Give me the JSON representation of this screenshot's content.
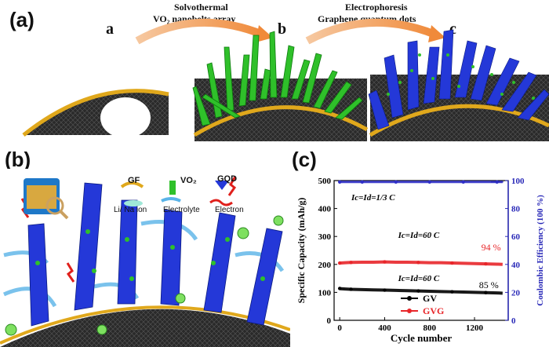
{
  "panels": {
    "a": "(a)",
    "b": "(b)",
    "c": "(c)"
  },
  "panel_a": {
    "steps": [
      "a",
      "b",
      "c"
    ],
    "arrow1": {
      "line1": "Solvothermal",
      "line2": "VO₂ nanobelts array"
    },
    "arrow2": {
      "line1": "Electrophoresis",
      "line2": "Graphene quantum dots"
    }
  },
  "panel_b": {
    "legend": [
      {
        "key": "GF",
        "label": "Li/ Na ion"
      },
      {
        "key": "VO₂",
        "label": "Electrolyte"
      },
      {
        "key": "GQD",
        "label": "Electron"
      }
    ]
  },
  "colors": {
    "gv": "#000000",
    "gvg": "#e8262a",
    "ce": "#3030c8",
    "axis_right": "#2a2ab8",
    "green": "#2fc02a",
    "blue": "#2438d8",
    "gold": "#e0a81c"
  },
  "chart_data": {
    "type": "scatter",
    "xlabel": "Cycle number",
    "ylabel": "Specific Capacity (mAh/g)",
    "y2label": "Coulombic Efficiency (100 %)",
    "xticks": [
      "0",
      "400",
      "800",
      "1200"
    ],
    "yticks": [
      "0",
      "100",
      "200",
      "300",
      "400",
      "500"
    ],
    "y2ticks": [
      "0",
      "20",
      "40",
      "60",
      "80",
      "100"
    ],
    "xlim": [
      -50,
      1500
    ],
    "ylim": [
      0,
      500
    ],
    "y2lim": [
      0,
      100
    ],
    "series": [
      {
        "name": "GV",
        "x": [
          0,
          10,
          50,
          100,
          200,
          300,
          400,
          500,
          600,
          700,
          800,
          900,
          1000,
          1100,
          1200,
          1300,
          1400,
          1450
        ],
        "values": [
          114,
          113,
          112,
          111,
          110,
          109,
          108,
          107,
          106,
          105,
          104,
          103,
          102,
          101,
          100,
          99,
          98,
          97
        ]
      },
      {
        "name": "GVG",
        "x": [
          0,
          10,
          50,
          100,
          200,
          300,
          400,
          500,
          600,
          700,
          800,
          900,
          1000,
          1100,
          1200,
          1300,
          1400,
          1450
        ],
        "values": [
          205,
          205,
          206,
          207,
          208,
          208,
          209,
          208,
          208,
          207,
          206,
          206,
          205,
          204,
          203,
          202,
          201,
          200
        ]
      },
      {
        "axis": "right",
        "x": [
          0,
          50,
          100,
          200,
          300,
          400,
          500,
          600,
          700,
          800,
          900,
          1000,
          1100,
          1200,
          1300,
          1400,
          1450
        ],
        "values": [
          99,
          99,
          99,
          99,
          99,
          99,
          99,
          99,
          99,
          99,
          99,
          99,
          99,
          99,
          99,
          99,
          99
        ]
      }
    ],
    "annotations": [
      {
        "text": "Ic=Id=1/3 C"
      },
      {
        "text": "Ic=Id=60 C"
      },
      {
        "text": "Ic=Id=60 C"
      },
      {
        "text": "94 %"
      },
      {
        "text": "85 %"
      }
    ],
    "legend": [
      "GV",
      "GVG"
    ],
    "legend_position": "bottom-center"
  }
}
